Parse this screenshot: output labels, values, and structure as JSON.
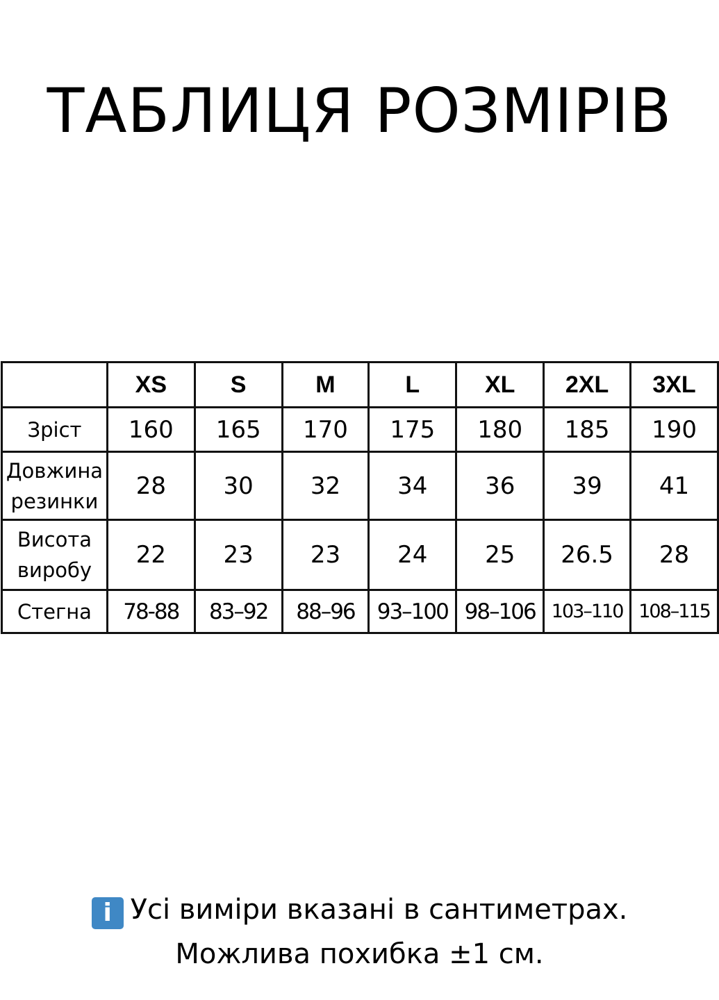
{
  "title": "ТАБЛИЦЯ РОЗМІРІВ",
  "table": {
    "headers": [
      "",
      "XS",
      "S",
      "M",
      "L",
      "XL",
      "2XL",
      "3XL"
    ],
    "rows": [
      {
        "label": "Зріст",
        "values": [
          "160",
          "165",
          "170",
          "175",
          "180",
          "185",
          "190"
        ]
      },
      {
        "label": "Довжина резинки",
        "values": [
          "28",
          "30",
          "32",
          "34",
          "36",
          "39",
          "41"
        ]
      },
      {
        "label": "Висота виробу",
        "values": [
          "22",
          "23",
          "23",
          "24",
          "25",
          "26.5",
          "28"
        ]
      },
      {
        "label": "Стегна",
        "values": [
          "78-88",
          "83–92",
          "88–96",
          "93–100",
          "98–106",
          "103–110",
          "108–115"
        ]
      }
    ]
  },
  "note": {
    "icon": "info-icon",
    "icon_color": "#3f88c5",
    "icon_glyph": "i",
    "line1": "Усі виміри вказані в сантиметрах.",
    "line2": "Можлива похибка ±1 см."
  }
}
